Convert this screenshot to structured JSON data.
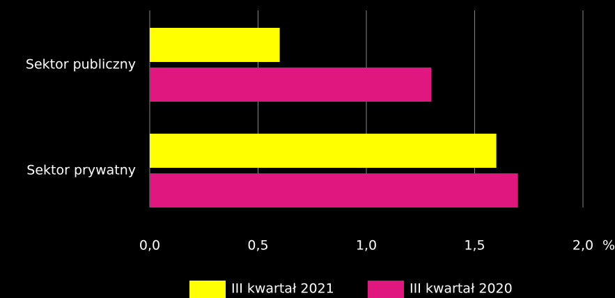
{
  "chart_data": {
    "type": "hbar",
    "categories": [
      "Sektor publiczny",
      "Sektor prywatny"
    ],
    "series": [
      {
        "name": "III kwartał 2021",
        "color": "#ffff00",
        "values": [
          0.6,
          1.6
        ]
      },
      {
        "name": "III kwartał 2020",
        "color": "#e0177f",
        "values": [
          1.3,
          1.7
        ]
      }
    ],
    "xlim": [
      0,
      2
    ],
    "xticks": [
      {
        "value": 0,
        "label": "0,0"
      },
      {
        "value": 0.5,
        "label": "0,5"
      },
      {
        "value": 1,
        "label": "1,0"
      },
      {
        "value": 1.5,
        "label": "1,5"
      },
      {
        "value": 2,
        "label": "2,0"
      }
    ],
    "x_unit": "%",
    "grid": true,
    "legend": "bottom"
  }
}
